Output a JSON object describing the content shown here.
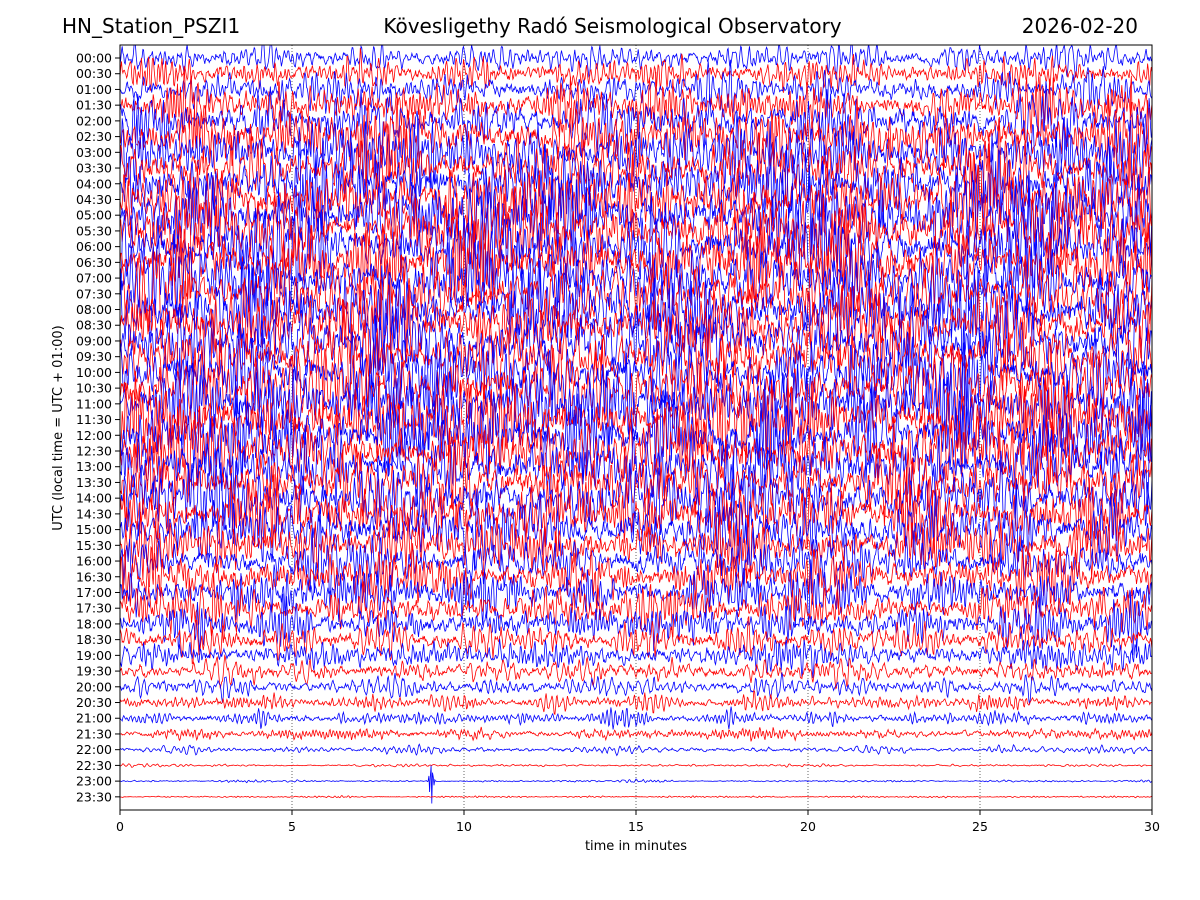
{
  "header": {
    "station": "HN_Station_PSZI1",
    "title": "Kövesligethy Radó Seismological Observatory",
    "date": "2026-02-20"
  },
  "chart_data": {
    "type": "line",
    "subtype": "helicorder",
    "xlabel": "time in minutes",
    "ylabel": "UTC (local time = UTC + 01:00)",
    "xlim": [
      0,
      30
    ],
    "xticks": [
      0,
      5,
      10,
      15,
      20,
      25,
      30
    ],
    "grid": "vertical dotted at 5-minute marks",
    "colors": [
      "#0000ff",
      "#ff0000"
    ],
    "rows": [
      {
        "label": "00:00",
        "color": "#0000ff",
        "amplitude": 1.6
      },
      {
        "label": "00:30",
        "color": "#ff0000",
        "amplitude": 1.8
      },
      {
        "label": "01:00",
        "color": "#0000ff",
        "amplitude": 2.0
      },
      {
        "label": "01:30",
        "color": "#ff0000",
        "amplitude": 2.6
      },
      {
        "label": "02:00",
        "color": "#0000ff",
        "amplitude": 3.0
      },
      {
        "label": "02:30",
        "color": "#ff0000",
        "amplitude": 3.4
      },
      {
        "label": "03:00",
        "color": "#0000ff",
        "amplitude": 3.6
      },
      {
        "label": "03:30",
        "color": "#ff0000",
        "amplitude": 3.8
      },
      {
        "label": "04:00",
        "color": "#0000ff",
        "amplitude": 4.0
      },
      {
        "label": "04:30",
        "color": "#ff0000",
        "amplitude": 4.0
      },
      {
        "label": "05:00",
        "color": "#0000ff",
        "amplitude": 4.2
      },
      {
        "label": "05:30",
        "color": "#ff0000",
        "amplitude": 4.2
      },
      {
        "label": "06:00",
        "color": "#0000ff",
        "amplitude": 4.4
      },
      {
        "label": "06:30",
        "color": "#ff0000",
        "amplitude": 4.4
      },
      {
        "label": "07:00",
        "color": "#0000ff",
        "amplitude": 4.4
      },
      {
        "label": "07:30",
        "color": "#ff0000",
        "amplitude": 4.4
      },
      {
        "label": "08:00",
        "color": "#0000ff",
        "amplitude": 4.4
      },
      {
        "label": "08:30",
        "color": "#ff0000",
        "amplitude": 4.4
      },
      {
        "label": "09:00",
        "color": "#0000ff",
        "amplitude": 4.4
      },
      {
        "label": "09:30",
        "color": "#ff0000",
        "amplitude": 4.4
      },
      {
        "label": "10:00",
        "color": "#0000ff",
        "amplitude": 4.4
      },
      {
        "label": "10:30",
        "color": "#ff0000",
        "amplitude": 4.4
      },
      {
        "label": "11:00",
        "color": "#0000ff",
        "amplitude": 4.2
      },
      {
        "label": "11:30",
        "color": "#ff0000",
        "amplitude": 4.2
      },
      {
        "label": "12:00",
        "color": "#0000ff",
        "amplitude": 4.2
      },
      {
        "label": "12:30",
        "color": "#ff0000",
        "amplitude": 4.0
      },
      {
        "label": "13:00",
        "color": "#0000ff",
        "amplitude": 4.0
      },
      {
        "label": "13:30",
        "color": "#ff0000",
        "amplitude": 3.8
      },
      {
        "label": "14:00",
        "color": "#0000ff",
        "amplitude": 3.8
      },
      {
        "label": "14:30",
        "color": "#ff0000",
        "amplitude": 3.6
      },
      {
        "label": "15:00",
        "color": "#0000ff",
        "amplitude": 3.4
      },
      {
        "label": "15:30",
        "color": "#ff0000",
        "amplitude": 3.2
      },
      {
        "label": "16:00",
        "color": "#0000ff",
        "amplitude": 3.0
      },
      {
        "label": "16:30",
        "color": "#ff0000",
        "amplitude": 2.8
      },
      {
        "label": "17:00",
        "color": "#0000ff",
        "amplitude": 2.6
      },
      {
        "label": "17:30",
        "color": "#ff0000",
        "amplitude": 2.4
      },
      {
        "label": "18:00",
        "color": "#0000ff",
        "amplitude": 2.2
      },
      {
        "label": "18:30",
        "color": "#ff0000",
        "amplitude": 2.0
      },
      {
        "label": "19:00",
        "color": "#0000ff",
        "amplitude": 1.7
      },
      {
        "label": "19:30",
        "color": "#ff0000",
        "amplitude": 1.4
      },
      {
        "label": "20:00",
        "color": "#0000ff",
        "amplitude": 1.1
      },
      {
        "label": "20:30",
        "color": "#ff0000",
        "amplitude": 0.9
      },
      {
        "label": "21:00",
        "color": "#0000ff",
        "amplitude": 0.8
      },
      {
        "label": "21:30",
        "color": "#ff0000",
        "amplitude": 0.7
      },
      {
        "label": "22:00",
        "color": "#0000ff",
        "amplitude": 0.4
      },
      {
        "label": "22:30",
        "color": "#ff0000",
        "amplitude": 0.15
      },
      {
        "label": "23:00",
        "color": "#0000ff",
        "amplitude": 0.12
      },
      {
        "label": "23:30",
        "color": "#ff0000",
        "amplitude": 0.1
      }
    ],
    "annotations": [
      {
        "row": "23:00",
        "x_minutes": 9.05,
        "description": "spike",
        "amplitude": 1.5
      }
    ]
  }
}
